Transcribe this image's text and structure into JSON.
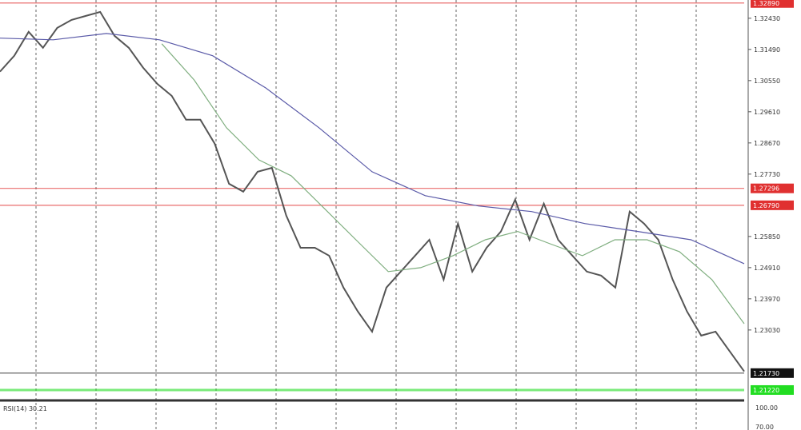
{
  "chart_data": {
    "type": "line",
    "ylim": [
      1.2093,
      1.3298
    ],
    "y_ticks": [
      "1.32430",
      "1.31490",
      "1.30550",
      "1.29610",
      "1.28670",
      "1.27730",
      "1.25850",
      "1.24910",
      "1.23970",
      "1.23030"
    ],
    "grid": "vertical dashed",
    "series": [
      {
        "color": "#555555",
        "values": [
          1.3082,
          1.313,
          1.3202,
          1.3154,
          1.3214,
          1.3238,
          1.325,
          1.3262,
          1.319,
          1.3154,
          1.3094,
          1.3045,
          1.3009,
          1.2937,
          1.2937,
          1.2865,
          1.2744,
          1.272,
          1.278,
          1.2792,
          1.2648,
          1.2551,
          1.2551,
          1.2527,
          1.2431,
          1.2359,
          1.2298,
          1.2431,
          1.2479,
          1.2527,
          1.2575,
          1.2455,
          1.2624,
          1.2479,
          1.2551,
          1.26,
          1.2696,
          1.2575,
          1.2684,
          1.2575,
          1.2527,
          1.2479,
          1.2467,
          1.2431,
          1.266,
          1.2624,
          1.2575,
          1.2455,
          1.2359,
          1.2286,
          1.2298,
          1.2238,
          1.2178
        ]
      },
      {
        "color": "#7fae7f",
        "values": [
          null,
          null,
          null,
          null,
          null,
          1.3166,
          1.3057,
          1.2913,
          1.2816,
          1.2768,
          1.2672,
          1.2575,
          1.2479,
          1.2491,
          1.2527,
          1.2575,
          1.26,
          1.2563,
          1.2527,
          1.2575,
          1.2575,
          1.2539,
          1.2455,
          1.2322
        ]
      },
      {
        "color": "#5a5aa8",
        "values": [
          1.3183,
          1.3178,
          1.3197,
          1.3178,
          1.313,
          1.3033,
          1.2913,
          1.278,
          1.2708,
          1.2677,
          1.266,
          1.2624,
          1.26,
          1.2575,
          1.2503
        ]
      }
    ],
    "levels": [
      {
        "price": 1.3289,
        "label": "1.32890",
        "color": "#e03030"
      },
      {
        "price": 1.273,
        "label": "1.27296",
        "color": "#e03030"
      },
      {
        "price": 1.2679,
        "label": "1.26790",
        "color": "#e03030"
      },
      {
        "price": 1.2173,
        "label": "1.21730",
        "color": "#111111"
      },
      {
        "price": 1.2122,
        "label": "1.21220",
        "color": "#22dd22"
      }
    ]
  },
  "indicator": {
    "label": "RSI(14) 30.21",
    "ticks": [
      "100.00",
      "70.00"
    ]
  }
}
